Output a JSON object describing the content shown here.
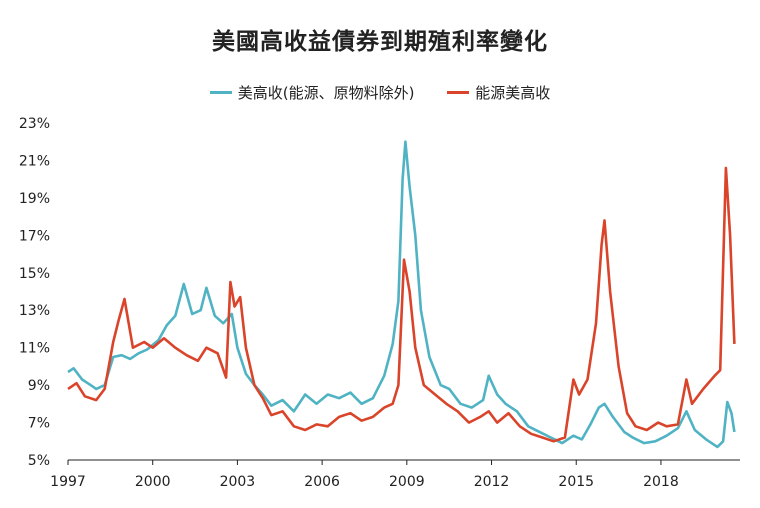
{
  "chart_data": {
    "type": "line",
    "title": "美國高收益債券到期殖利率變化",
    "xlabel": "",
    "ylabel": "",
    "ylim": [
      5,
      23
    ],
    "xlim": [
      1997.0,
      2020.8
    ],
    "grid": false,
    "legend_position": "top-center",
    "x_tick_labels": [
      "1997",
      "2000",
      "2003",
      "2006",
      "2009",
      "2012",
      "2015",
      "2018"
    ],
    "x_ticks": [
      1997,
      2000,
      2003,
      2006,
      2009,
      2012,
      2015,
      2018
    ],
    "y_tick_labels": [
      "5%",
      "7%",
      "9%",
      "11%",
      "13%",
      "15%",
      "17%",
      "19%",
      "21%",
      "23%"
    ],
    "y_ticks": [
      5,
      7,
      9,
      11,
      13,
      15,
      17,
      19,
      21,
      23
    ],
    "series": [
      {
        "name": "美高收(能源、原物料除外)",
        "color": "#4fb3c4",
        "points": [
          [
            1997.0,
            9.7
          ],
          [
            1997.2,
            9.9
          ],
          [
            1997.5,
            9.3
          ],
          [
            1997.8,
            9.0
          ],
          [
            1998.0,
            8.8
          ],
          [
            1998.3,
            9.0
          ],
          [
            1998.6,
            10.5
          ],
          [
            1998.9,
            10.6
          ],
          [
            1999.2,
            10.4
          ],
          [
            1999.5,
            10.7
          ],
          [
            1999.8,
            10.9
          ],
          [
            2000.2,
            11.4
          ],
          [
            2000.5,
            12.2
          ],
          [
            2000.8,
            12.7
          ],
          [
            2001.1,
            14.4
          ],
          [
            2001.4,
            12.8
          ],
          [
            2001.7,
            13.0
          ],
          [
            2001.9,
            14.2
          ],
          [
            2002.2,
            12.7
          ],
          [
            2002.5,
            12.3
          ],
          [
            2002.8,
            12.8
          ],
          [
            2003.0,
            11.0
          ],
          [
            2003.3,
            9.6
          ],
          [
            2003.6,
            9.0
          ],
          [
            2003.9,
            8.5
          ],
          [
            2004.2,
            7.9
          ],
          [
            2004.6,
            8.2
          ],
          [
            2005.0,
            7.6
          ],
          [
            2005.4,
            8.5
          ],
          [
            2005.8,
            8.0
          ],
          [
            2006.2,
            8.5
          ],
          [
            2006.6,
            8.3
          ],
          [
            2007.0,
            8.6
          ],
          [
            2007.4,
            8.0
          ],
          [
            2007.8,
            8.3
          ],
          [
            2008.2,
            9.5
          ],
          [
            2008.5,
            11.2
          ],
          [
            2008.7,
            13.5
          ],
          [
            2008.85,
            20.0
          ],
          [
            2008.95,
            22.0
          ],
          [
            2009.1,
            19.6
          ],
          [
            2009.3,
            17.0
          ],
          [
            2009.5,
            13.0
          ],
          [
            2009.8,
            10.5
          ],
          [
            2010.2,
            9.0
          ],
          [
            2010.5,
            8.8
          ],
          [
            2010.9,
            8.0
          ],
          [
            2011.3,
            7.8
          ],
          [
            2011.7,
            8.2
          ],
          [
            2011.9,
            9.5
          ],
          [
            2012.2,
            8.5
          ],
          [
            2012.5,
            8.0
          ],
          [
            2012.9,
            7.6
          ],
          [
            2013.3,
            6.8
          ],
          [
            2013.7,
            6.5
          ],
          [
            2014.1,
            6.2
          ],
          [
            2014.5,
            5.9
          ],
          [
            2014.9,
            6.3
          ],
          [
            2015.2,
            6.1
          ],
          [
            2015.5,
            6.9
          ],
          [
            2015.8,
            7.8
          ],
          [
            2016.0,
            8.0
          ],
          [
            2016.3,
            7.3
          ],
          [
            2016.7,
            6.5
          ],
          [
            2017.0,
            6.2
          ],
          [
            2017.4,
            5.9
          ],
          [
            2017.8,
            6.0
          ],
          [
            2018.2,
            6.3
          ],
          [
            2018.6,
            6.7
          ],
          [
            2018.9,
            7.6
          ],
          [
            2019.2,
            6.6
          ],
          [
            2019.6,
            6.1
          ],
          [
            2020.0,
            5.7
          ],
          [
            2020.2,
            6.0
          ],
          [
            2020.35,
            8.1
          ],
          [
            2020.5,
            7.5
          ],
          [
            2020.6,
            6.5
          ]
        ]
      },
      {
        "name": "能源美高收",
        "color": "#d9442a",
        "points": [
          [
            1997.0,
            8.8
          ],
          [
            1997.3,
            9.1
          ],
          [
            1997.6,
            8.4
          ],
          [
            1998.0,
            8.2
          ],
          [
            1998.3,
            8.8
          ],
          [
            1998.6,
            11.3
          ],
          [
            1998.8,
            12.5
          ],
          [
            1999.0,
            13.6
          ],
          [
            1999.3,
            11.0
          ],
          [
            1999.7,
            11.3
          ],
          [
            2000.0,
            11.0
          ],
          [
            2000.4,
            11.5
          ],
          [
            2000.8,
            11.0
          ],
          [
            2001.2,
            10.6
          ],
          [
            2001.6,
            10.3
          ],
          [
            2001.9,
            11.0
          ],
          [
            2002.3,
            10.7
          ],
          [
            2002.6,
            9.4
          ],
          [
            2002.75,
            14.5
          ],
          [
            2002.9,
            13.2
          ],
          [
            2003.1,
            13.7
          ],
          [
            2003.3,
            11.0
          ],
          [
            2003.6,
            9.0
          ],
          [
            2003.9,
            8.3
          ],
          [
            2004.2,
            7.4
          ],
          [
            2004.6,
            7.6
          ],
          [
            2005.0,
            6.8
          ],
          [
            2005.4,
            6.6
          ],
          [
            2005.8,
            6.9
          ],
          [
            2006.2,
            6.8
          ],
          [
            2006.6,
            7.3
          ],
          [
            2007.0,
            7.5
          ],
          [
            2007.4,
            7.1
          ],
          [
            2007.8,
            7.3
          ],
          [
            2008.2,
            7.8
          ],
          [
            2008.5,
            8.0
          ],
          [
            2008.7,
            9.0
          ],
          [
            2008.9,
            15.7
          ],
          [
            2009.1,
            14.0
          ],
          [
            2009.3,
            11.0
          ],
          [
            2009.6,
            9.0
          ],
          [
            2010.0,
            8.5
          ],
          [
            2010.4,
            8.0
          ],
          [
            2010.8,
            7.6
          ],
          [
            2011.2,
            7.0
          ],
          [
            2011.6,
            7.3
          ],
          [
            2011.9,
            7.6
          ],
          [
            2012.2,
            7.0
          ],
          [
            2012.6,
            7.5
          ],
          [
            2013.0,
            6.8
          ],
          [
            2013.4,
            6.4
          ],
          [
            2013.8,
            6.2
          ],
          [
            2014.2,
            6.0
          ],
          [
            2014.6,
            6.2
          ],
          [
            2014.9,
            9.3
          ],
          [
            2015.1,
            8.5
          ],
          [
            2015.4,
            9.3
          ],
          [
            2015.7,
            12.3
          ],
          [
            2015.9,
            16.5
          ],
          [
            2016.0,
            17.8
          ],
          [
            2016.2,
            14.0
          ],
          [
            2016.5,
            10.0
          ],
          [
            2016.8,
            7.5
          ],
          [
            2017.1,
            6.8
          ],
          [
            2017.5,
            6.6
          ],
          [
            2017.9,
            7.0
          ],
          [
            2018.2,
            6.8
          ],
          [
            2018.6,
            6.9
          ],
          [
            2018.9,
            9.3
          ],
          [
            2019.1,
            8.0
          ],
          [
            2019.5,
            8.8
          ],
          [
            2019.9,
            9.5
          ],
          [
            2020.1,
            9.8
          ],
          [
            2020.3,
            20.6
          ],
          [
            2020.45,
            17.0
          ],
          [
            2020.6,
            11.2
          ]
        ]
      }
    ]
  }
}
